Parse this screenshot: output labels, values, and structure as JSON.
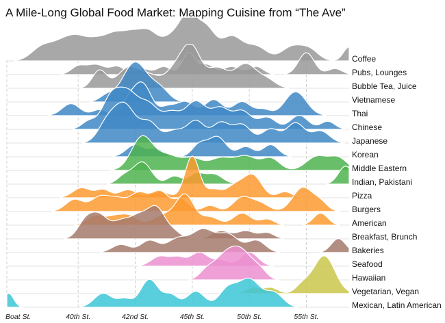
{
  "chart_data": {
    "type": "ridgeline",
    "title": "A Mile-Long Global Food Market: Mapping Cuisine from “The Ave”",
    "x_ticks": [
      {
        "label": "Boat St.",
        "pos": 0
      },
      {
        "label": "40th St.",
        "pos": 20
      },
      {
        "label": "42nd St.",
        "pos": 36
      },
      {
        "label": "45th St.",
        "pos": 52
      },
      {
        "label": "50th St.",
        "pos": 68
      },
      {
        "label": "55th St.",
        "pos": 84
      }
    ],
    "xlim": [
      0,
      96
    ],
    "grid": true,
    "colors": {
      "gray": "#999999",
      "blue": "#3f88c5",
      "green": "#4fb34f",
      "orange": "#fb9a30",
      "brown": "#a57a6c",
      "pink": "#ec8fd0",
      "olive": "#c9c74a",
      "cyan": "#3cc6d6"
    },
    "series": [
      {
        "name": "Coffee",
        "color": "gray",
        "peaks": [
          [
            10,
            0.35,
            3
          ],
          [
            16,
            0.45,
            3
          ],
          [
            20,
            0.35,
            2.5
          ],
          [
            25,
            0.5,
            3
          ],
          [
            30,
            0.45,
            2.5
          ],
          [
            35,
            0.65,
            3
          ],
          [
            40,
            0.55,
            2.5
          ],
          [
            46,
            0.55,
            3
          ],
          [
            51,
            1.0,
            2.5
          ],
          [
            56,
            0.75,
            2.5
          ],
          [
            63,
            0.6,
            3
          ],
          [
            70,
            0.35,
            3
          ],
          [
            80,
            0.35,
            3
          ],
          [
            85,
            0.25,
            2.5
          ],
          [
            96,
            0.35,
            1.6
          ]
        ]
      },
      {
        "name": "Pubs, Lounges",
        "color": "gray",
        "peaks": [
          [
            20,
            0.2,
            2
          ],
          [
            25,
            0.25,
            2.5
          ],
          [
            31,
            0.2,
            2
          ],
          [
            38,
            0.15,
            2
          ],
          [
            44,
            0.2,
            2
          ],
          [
            51,
            0.55,
            1.8
          ],
          [
            56,
            0.25,
            2
          ],
          [
            63,
            0.2,
            2.5
          ],
          [
            70,
            0.2,
            2
          ],
          [
            84,
            0.55,
            2.2
          ],
          [
            92,
            0.15,
            2
          ]
        ]
      },
      {
        "name": "Bubble Tea, Juice",
        "color": "gray",
        "peaks": [
          [
            26,
            0.45,
            2
          ],
          [
            34,
            0.5,
            3
          ],
          [
            40,
            0.3,
            3
          ],
          [
            48,
            0.55,
            3
          ],
          [
            52,
            0.85,
            2.5
          ],
          [
            59,
            0.5,
            3
          ],
          [
            67,
            0.6,
            3
          ],
          [
            73,
            0.2,
            2.5
          ]
        ]
      },
      {
        "name": "Vietnamese",
        "color": "blue",
        "peaks": [
          [
            28,
            0.15,
            2
          ],
          [
            36,
            1.0,
            3.5
          ],
          [
            43,
            0.3,
            2.5
          ]
        ]
      },
      {
        "name": "Thai",
        "color": "blue",
        "peaks": [
          [
            18,
            0.3,
            2.5
          ],
          [
            26,
            0.15,
            2
          ],
          [
            34,
            0.3,
            2
          ],
          [
            38,
            0.8,
            2.5
          ],
          [
            45,
            0.2,
            2
          ],
          [
            50,
            0.35,
            2.5
          ],
          [
            58,
            0.4,
            2.5
          ],
          [
            66,
            0.35,
            2.5
          ],
          [
            72,
            0.15,
            2
          ],
          [
            81,
            0.6,
            3
          ]
        ]
      },
      {
        "name": "Chinese",
        "color": "blue",
        "peaks": [
          [
            23,
            0.2,
            2
          ],
          [
            29,
            0.7,
            2.5
          ],
          [
            34,
            0.9,
            3
          ],
          [
            40,
            0.55,
            2.5
          ],
          [
            46,
            0.4,
            2.5
          ],
          [
            53,
            0.7,
            3
          ],
          [
            60,
            0.5,
            2.5
          ],
          [
            66,
            0.45,
            2.5
          ],
          [
            73,
            0.3,
            2.5
          ],
          [
            82,
            0.35,
            2.5
          ],
          [
            90,
            0.2,
            2
          ]
        ]
      },
      {
        "name": "Japanese",
        "color": "blue",
        "peaks": [
          [
            28,
            0.45,
            2.5
          ],
          [
            33,
            0.95,
            3
          ],
          [
            40,
            0.5,
            2.5
          ],
          [
            47,
            0.3,
            2.5
          ],
          [
            53,
            0.55,
            2.5
          ],
          [
            60,
            0.5,
            2.5
          ],
          [
            66,
            0.45,
            2.5
          ],
          [
            74,
            0.35,
            2.5
          ],
          [
            81,
            0.5,
            2.5
          ],
          [
            88,
            0.3,
            2.5
          ]
        ]
      },
      {
        "name": "Korean",
        "color": "blue",
        "peaks": [
          [
            36,
            0.3,
            2.5
          ],
          [
            42,
            0.2,
            2
          ],
          [
            54,
            0.3,
            2
          ],
          [
            59,
            0.5,
            2.5
          ],
          [
            67,
            0.25,
            2.2
          ],
          [
            74,
            0.3,
            2.2
          ]
        ]
      },
      {
        "name": "Middle Eastern",
        "color": "green",
        "peaks": [
          [
            38,
            0.85,
            3
          ],
          [
            45,
            0.35,
            3
          ],
          [
            52,
            0.3,
            3
          ],
          [
            60,
            0.3,
            3
          ],
          [
            67,
            0.35,
            3
          ],
          [
            74,
            0.3,
            2.5
          ],
          [
            87,
            0.35,
            3
          ],
          [
            93,
            0.3,
            2.5
          ]
        ]
      },
      {
        "name": "Indian, Pakistani",
        "color": "green",
        "peaks": [
          [
            33,
            0.2,
            2
          ],
          [
            38,
            0.55,
            2.5
          ],
          [
            47,
            0.2,
            2
          ],
          [
            53,
            0.25,
            2
          ],
          [
            58,
            0.25,
            2.5
          ],
          [
            95,
            0.45,
            2
          ]
        ]
      },
      {
        "name": "Pizza",
        "color": "orange",
        "peaks": [
          [
            21,
            0.25,
            2.5
          ],
          [
            27,
            0.2,
            2
          ],
          [
            34,
            0.2,
            2.5
          ],
          [
            43,
            0.15,
            2.5
          ],
          [
            52,
            1.05,
            2
          ],
          [
            58,
            0.2,
            2
          ],
          [
            64,
            0.3,
            2.5
          ],
          [
            69,
            0.55,
            2.5
          ],
          [
            78,
            0.15,
            2
          ]
        ]
      },
      {
        "name": "Burgers",
        "color": "orange",
        "peaks": [
          [
            19,
            0.3,
            2.5
          ],
          [
            26,
            0.35,
            2.5
          ],
          [
            31,
            0.3,
            2.5
          ],
          [
            37,
            0.45,
            2.5
          ],
          [
            43,
            0.5,
            2.5
          ],
          [
            49,
            0.3,
            2
          ],
          [
            57,
            0.15,
            2
          ],
          [
            66,
            0.35,
            2.5
          ],
          [
            71,
            0.2,
            2.5
          ],
          [
            83,
            0.6,
            2.8
          ],
          [
            88,
            0.2,
            2
          ]
        ]
      },
      {
        "name": "American",
        "color": "orange",
        "peaks": [
          [
            25,
            0.25,
            2.5
          ],
          [
            30,
            0.15,
            2
          ],
          [
            34,
            0.25,
            2.5
          ],
          [
            44,
            0.25,
            3
          ],
          [
            50,
            0.75,
            2.5
          ],
          [
            57,
            0.2,
            2.5
          ],
          [
            66,
            0.3,
            2.5
          ],
          [
            73,
            0.15,
            2
          ],
          [
            88,
            0.3,
            2
          ]
        ]
      },
      {
        "name": "Breakfast, Brunch",
        "color": "brown",
        "peaks": [
          [
            22,
            0.4,
            2.2
          ],
          [
            26,
            0.55,
            2.5
          ],
          [
            32,
            0.4,
            2.5
          ],
          [
            37,
            0.5,
            2.5
          ],
          [
            42,
            0.75,
            2.5
          ],
          [
            47,
            0.15,
            2
          ],
          [
            60,
            0.2,
            2.5
          ],
          [
            67,
            0.2,
            2.5
          ],
          [
            73,
            0.15,
            2
          ]
        ]
      },
      {
        "name": "Bakeries",
        "color": "brown",
        "peaks": [
          [
            32,
            0.2,
            2.5
          ],
          [
            40,
            0.3,
            2.5
          ],
          [
            48,
            0.35,
            3
          ],
          [
            55,
            0.55,
            3
          ],
          [
            62,
            0.45,
            3
          ],
          [
            70,
            0.3,
            2.5
          ],
          [
            93,
            0.35,
            2
          ]
        ]
      },
      {
        "name": "Seafood",
        "color": "pink",
        "peaks": [
          [
            43,
            0.25,
            2.5
          ],
          [
            48,
            0.2,
            2
          ],
          [
            54,
            0.35,
            2.5
          ],
          [
            60,
            0.15,
            2
          ],
          [
            68,
            0.35,
            2.5
          ]
        ]
      },
      {
        "name": "Hawaiian",
        "color": "pink",
        "peaks": [
          [
            56,
            0.2,
            2
          ],
          [
            61,
            0.55,
            3
          ],
          [
            66,
            0.65,
            3
          ],
          [
            71,
            0.2,
            2
          ]
        ]
      },
      {
        "name": "Vegetarian, Vegan",
        "color": "olive",
        "peaks": [
          [
            69,
            0.15,
            2
          ],
          [
            74,
            0.15,
            2
          ],
          [
            83,
            0.2,
            2
          ],
          [
            89,
            0.95,
            3
          ]
        ]
      },
      {
        "name": "Mexican, Latin American",
        "color": "cyan",
        "peaks": [
          [
            0.5,
            0.35,
            1.4
          ],
          [
            27,
            0.35,
            2.5
          ],
          [
            33,
            0.2,
            2
          ],
          [
            40,
            0.7,
            2.5
          ],
          [
            46,
            0.3,
            2
          ],
          [
            53,
            0.4,
            2.5
          ],
          [
            62,
            0.45,
            2.5
          ],
          [
            68,
            0.7,
            3
          ],
          [
            75,
            0.35,
            2.5
          ]
        ]
      }
    ]
  }
}
